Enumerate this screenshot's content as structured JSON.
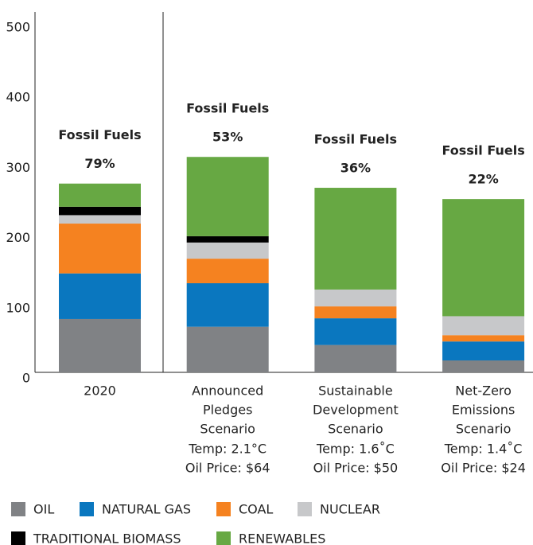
{
  "chart_data": {
    "type": "stacked_bar",
    "categories": [
      [
        "2020"
      ],
      [
        "Announced",
        "Pledges",
        "Scenario"
      ],
      [
        "Sustainable",
        "Development",
        "Scenario"
      ],
      [
        "Net-Zero",
        "Emissions",
        "Scenario"
      ]
    ],
    "notes": [
      [],
      [
        "Temp: 2.1°C",
        "Oil Price: $64"
      ],
      [
        "Temp: 1.6˚C",
        "Oil Price: $50"
      ],
      [
        "Temp: 1.4˚C",
        "Oil Price: $24"
      ]
    ],
    "series": [
      {
        "name": "OIL",
        "color": "#808285",
        "values": [
          76,
          65,
          39,
          17
        ]
      },
      {
        "name": "NATURAL GAS",
        "color": "#0a77bf",
        "values": [
          65,
          62,
          38,
          27
        ]
      },
      {
        "name": "COAL",
        "color": "#f58220",
        "values": [
          71,
          35,
          17,
          9
        ]
      },
      {
        "name": "NUCLEAR",
        "color": "#c7c8ca",
        "values": [
          12,
          23,
          24,
          27
        ]
      },
      {
        "name": "TRADITIONAL BIOMASS",
        "color": "#000000",
        "values": [
          12,
          9,
          0,
          0
        ]
      },
      {
        "name": "RENEWABLES",
        "color": "#67a843",
        "values": [
          33,
          113,
          145,
          167
        ]
      }
    ],
    "annotation": "Fossil Fuels",
    "fossil_share": [
      79,
      53,
      36,
      22
    ],
    "fossil_share_labels": [
      "79%",
      "53%",
      "36%",
      "22%"
    ],
    "ylim": [
      0,
      500
    ],
    "yticks": [
      0,
      100,
      200,
      300,
      400,
      500
    ]
  }
}
